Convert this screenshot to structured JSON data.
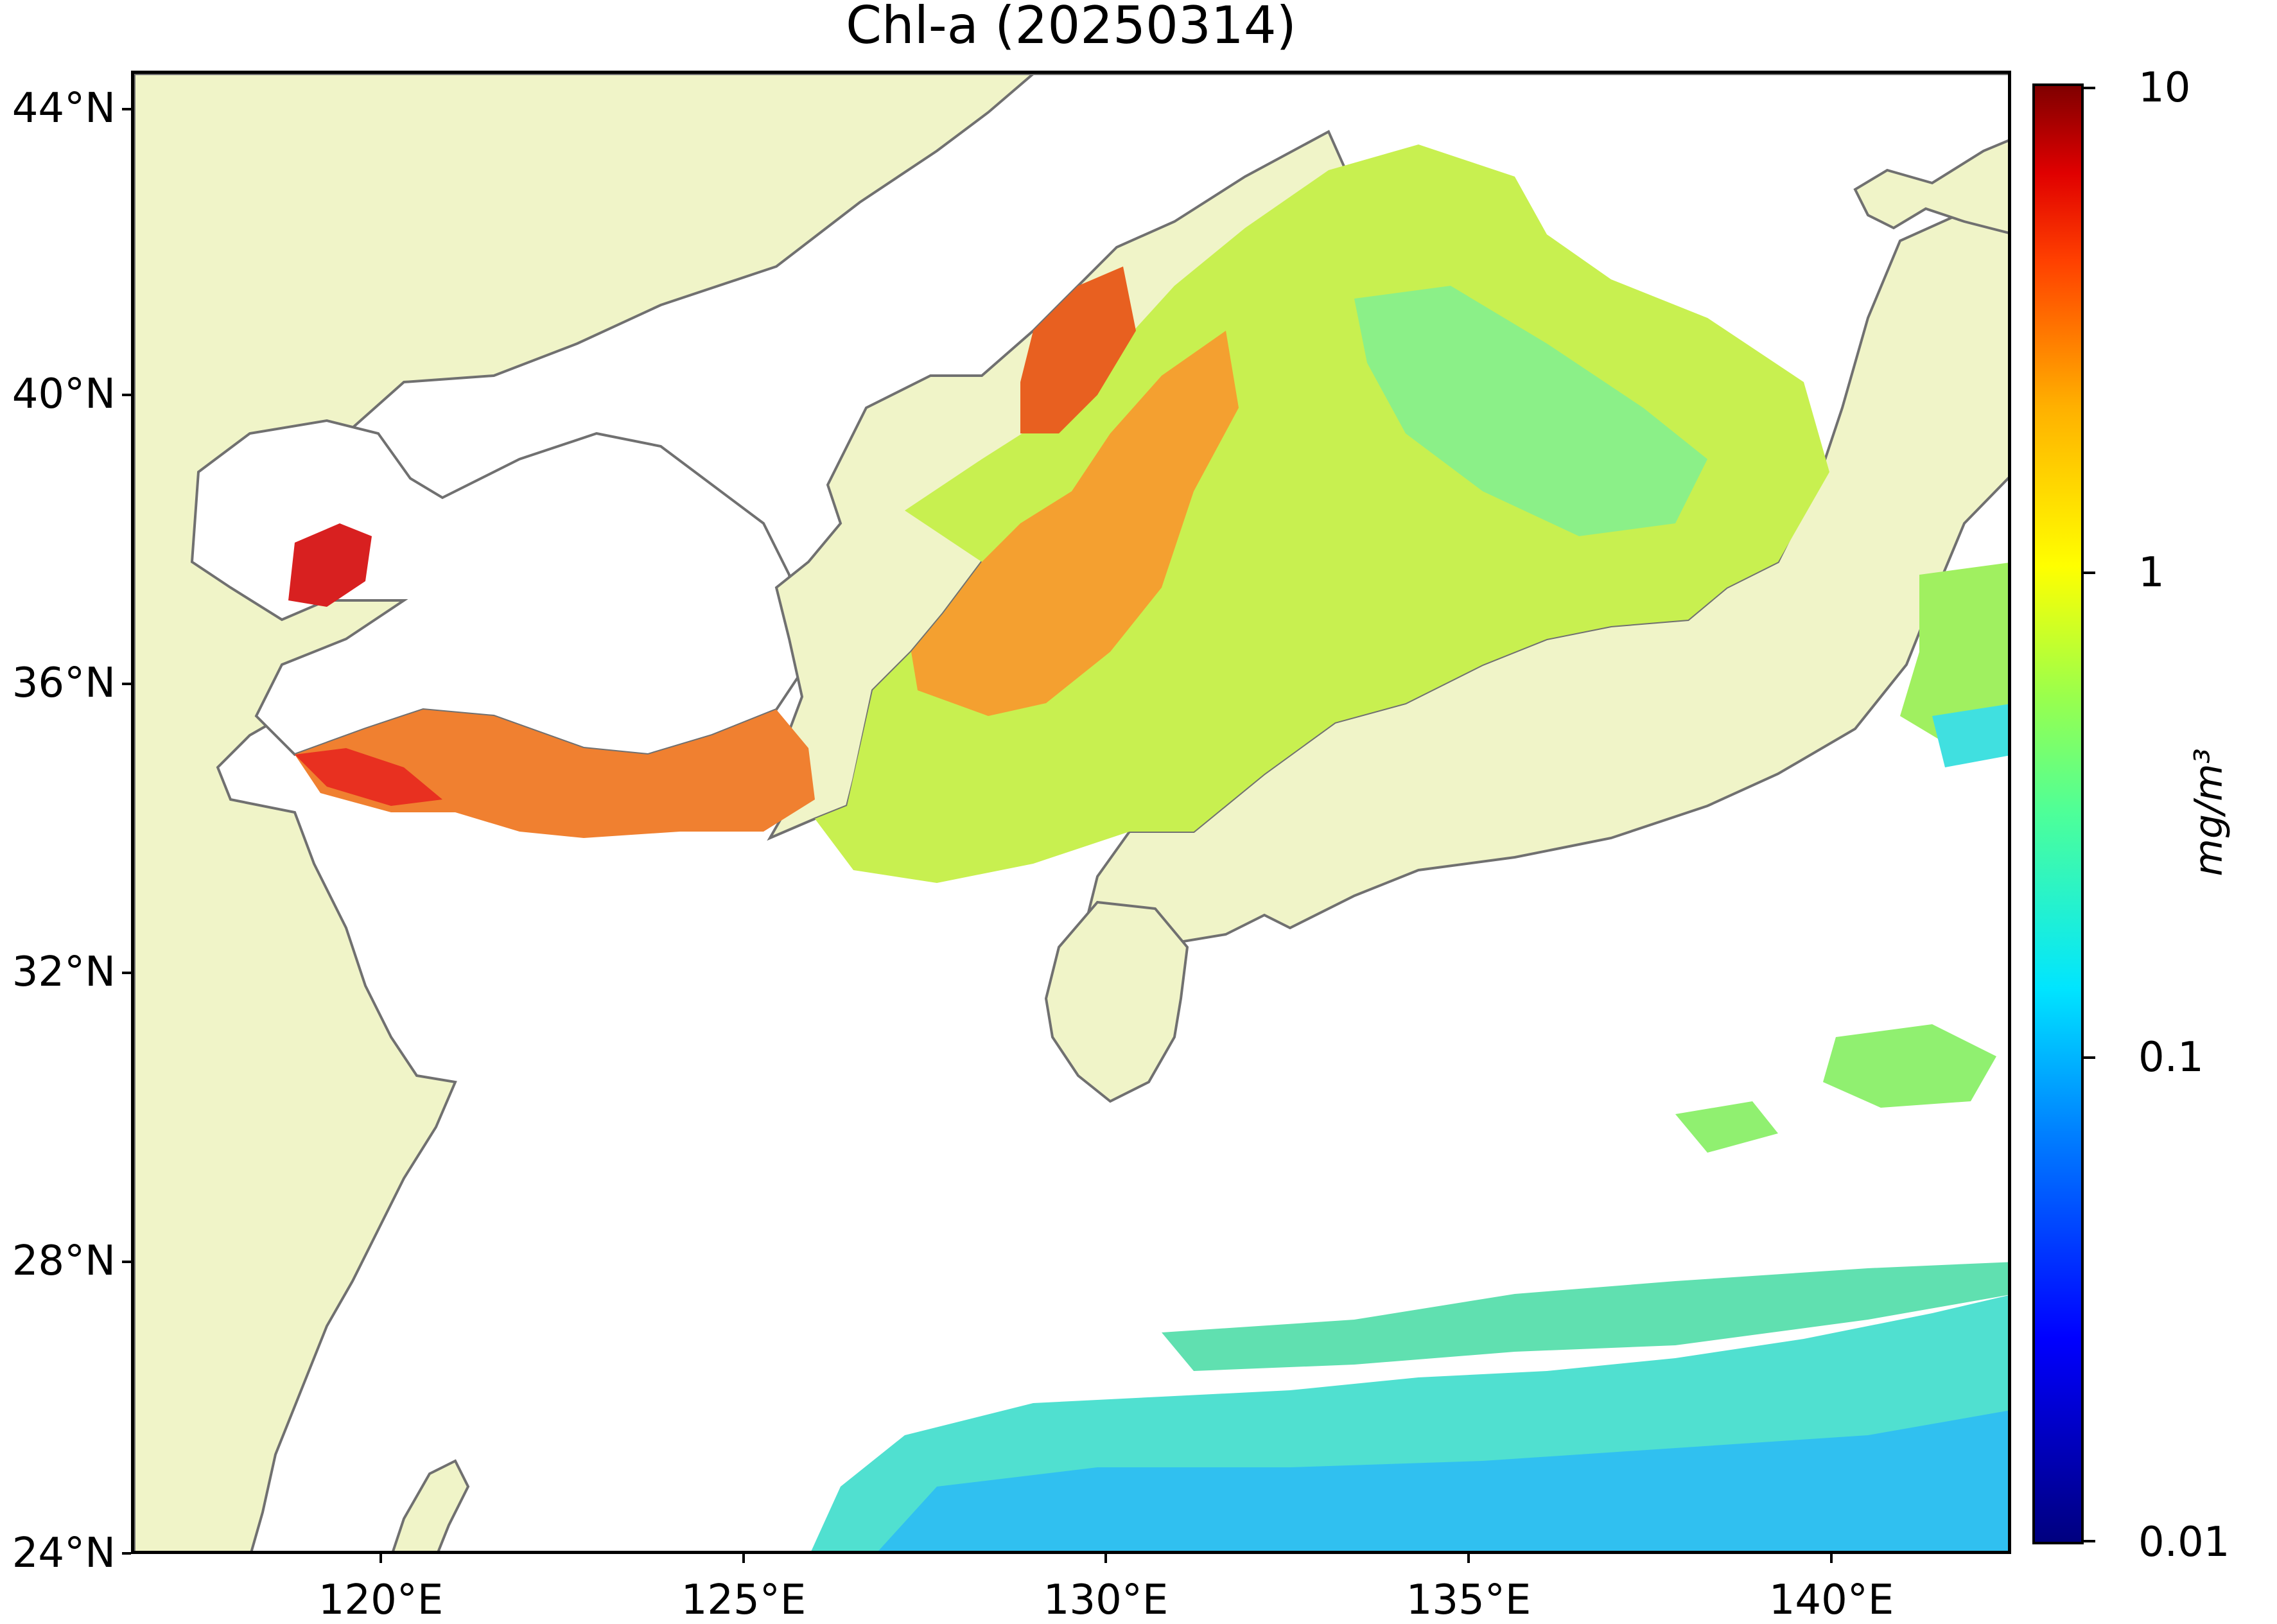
{
  "map": {
    "title": "Chl-a (20250314)",
    "lat_ticks": [
      "44°N",
      "40°N",
      "36°N",
      "32°N",
      "28°N",
      "24°N"
    ],
    "lon_ticks": [
      "120°E",
      "125°E",
      "130°E",
      "135°E",
      "140°E"
    ],
    "extent": {
      "lon_min": 116.7,
      "lon_max": 142.9,
      "lat_min": 24,
      "lat_max": 44.5
    }
  },
  "colorbar": {
    "scale": "log",
    "ticks": [
      "10",
      "1",
      "0.1",
      "0.01"
    ],
    "unit": "mg/m³",
    "colormap": "jet",
    "range": [
      0.01,
      10
    ]
  },
  "colors": {
    "land": "#f0f4c8",
    "coastline": "#707070",
    "cloud_nodata": "#ffffff"
  }
}
